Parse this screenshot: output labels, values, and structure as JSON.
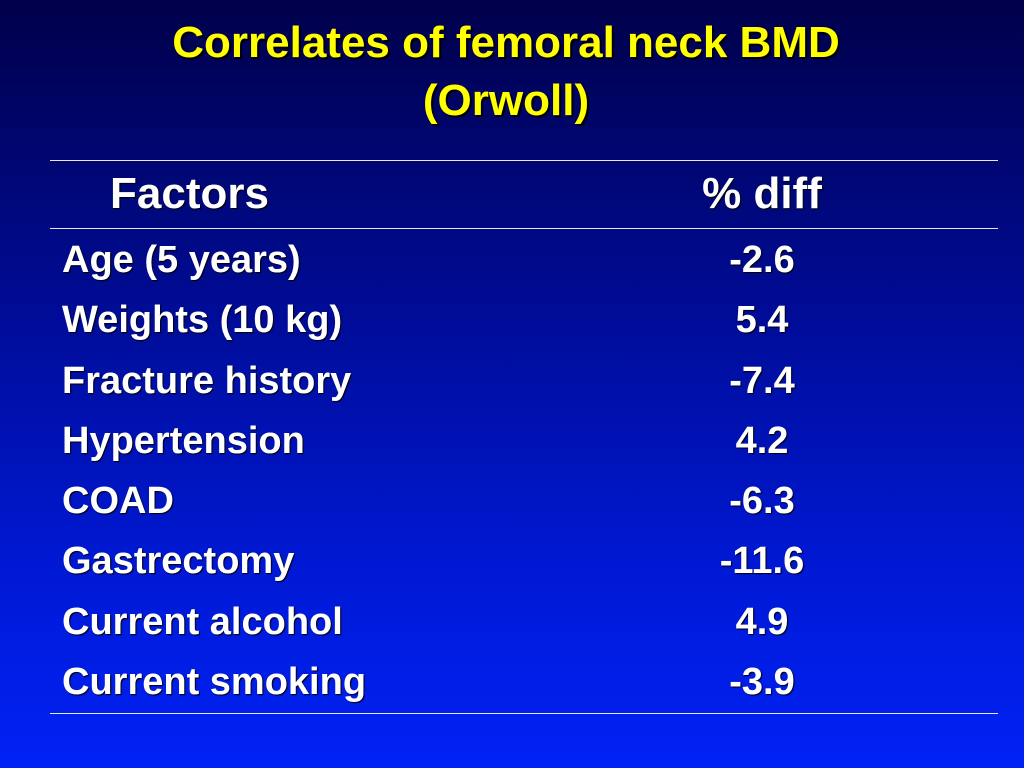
{
  "title": {
    "line1": "Correlates of femoral neck BMD",
    "line2": "(Orwoll)"
  },
  "table": {
    "headers": {
      "factor": "Factors",
      "diff": "% diff"
    },
    "rows": [
      {
        "factor": "Age (5 years)",
        "diff": "-2.6"
      },
      {
        "factor": "Weights (10 kg)",
        "diff": "5.4"
      },
      {
        "factor": "Fracture history",
        "diff": "-7.4"
      },
      {
        "factor": "Hypertension",
        "diff": "4.2"
      },
      {
        "factor": "COAD",
        "diff": "-6.3"
      },
      {
        "factor": "Gastrectomy",
        "diff": "-11.6"
      },
      {
        "factor": "Current alcohol",
        "diff": "4.9"
      },
      {
        "factor": "Current smoking",
        "diff": "-3.9"
      }
    ]
  },
  "colors": {
    "title": "#ffff00",
    "text": "#ffffff",
    "rule": "#e8e8e8",
    "background_top": "#00004a",
    "background_bottom": "#0022f5"
  }
}
